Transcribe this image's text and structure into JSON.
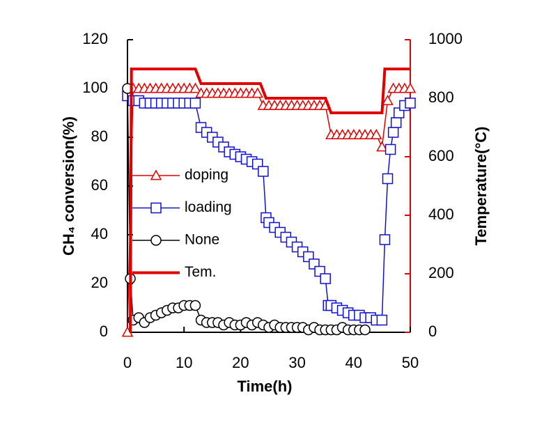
{
  "chart_data": {
    "type": "line",
    "x_label": "Time(h)",
    "y_label": "CH₄ conversion(%)",
    "y2_label": "Temperature(°C)",
    "xlim": [
      0,
      50
    ],
    "xticks": [
      0,
      10,
      20,
      30,
      40,
      50
    ],
    "ylim": [
      0,
      120
    ],
    "yticks": [
      0,
      20,
      40,
      60,
      80,
      100,
      120
    ],
    "y2lim": [
      0,
      1000
    ],
    "y2ticks": [
      0,
      200,
      400,
      600,
      800,
      1000
    ],
    "y2_color": "#e00000",
    "series": [
      {
        "name": "doping",
        "color": "#e00000",
        "marker": "triangle",
        "x": [
          0,
          1,
          2,
          3,
          4,
          5,
          6,
          7,
          8,
          9,
          10,
          11,
          12,
          13,
          14,
          15,
          16,
          17,
          18,
          19,
          20,
          21,
          22,
          23,
          24,
          25,
          26,
          27,
          28,
          29,
          30,
          31,
          32,
          33,
          34,
          35,
          36,
          37,
          38,
          39,
          40,
          41,
          42,
          43,
          44,
          45,
          46,
          47,
          48,
          49,
          50
        ],
        "values": [
          0,
          100,
          100,
          100,
          100,
          100,
          100,
          100,
          100,
          100,
          100,
          100,
          100,
          98,
          98,
          98,
          98,
          98,
          98,
          98,
          98,
          98,
          98,
          98,
          93,
          93,
          93,
          93,
          93,
          93,
          93,
          93,
          93,
          93,
          93,
          93,
          81,
          81,
          81,
          81,
          81,
          81,
          81,
          81,
          81,
          76,
          95,
          100,
          100,
          100,
          100
        ]
      },
      {
        "name": "loading",
        "color": "#1010d0",
        "marker": "square",
        "x": [
          0,
          1,
          2,
          3,
          4,
          5,
          6,
          7,
          8,
          9,
          10,
          11,
          12,
          13,
          14,
          15,
          16,
          17,
          18,
          19,
          20,
          21,
          22,
          23,
          24,
          24.5,
          25,
          26,
          27,
          28,
          29,
          30,
          31,
          32,
          33,
          34,
          35,
          35.5,
          36,
          37,
          38,
          39,
          40,
          41,
          42,
          43,
          44,
          45,
          45.5,
          46,
          46.5,
          47,
          47.5,
          48,
          49,
          50
        ],
        "values": [
          97,
          95,
          95,
          94,
          94,
          94,
          94,
          94,
          94,
          94,
          94,
          94,
          94,
          84,
          82,
          80,
          78,
          76,
          74,
          73,
          72,
          71,
          70,
          69,
          66,
          47,
          45,
          43,
          41,
          39,
          37,
          35,
          33,
          31,
          28,
          25,
          22,
          11,
          11,
          10,
          9,
          8,
          7,
          7,
          6,
          6,
          5,
          5,
          38,
          63,
          75,
          82,
          86,
          90,
          93,
          94
        ]
      },
      {
        "name": "None",
        "color": "#000000",
        "marker": "circle",
        "x": [
          0,
          0.5,
          1,
          2,
          3,
          4,
          5,
          6,
          7,
          8,
          9,
          10,
          11,
          12,
          13,
          14,
          15,
          16,
          17,
          18,
          19,
          20,
          21,
          22,
          23,
          24,
          25,
          26,
          27,
          28,
          29,
          30,
          31,
          32,
          33,
          34,
          35,
          36,
          37,
          38,
          39,
          40,
          41,
          42
        ],
        "values": [
          100,
          22,
          5,
          6,
          4,
          6,
          7,
          8,
          9,
          10,
          10,
          11,
          11,
          11,
          5,
          4,
          4,
          4,
          3,
          4,
          3,
          3,
          4,
          3,
          4,
          3,
          2,
          3,
          2,
          2,
          2,
          2,
          2,
          1,
          2,
          1,
          1,
          1,
          1,
          2,
          1,
          1,
          1,
          1
        ]
      },
      {
        "name": "Tem.",
        "color": "#e00000",
        "marker": "none",
        "axis": "y2",
        "x": [
          0.5,
          0.7,
          12,
          13,
          23.5,
          24.5,
          35,
          36,
          45,
          45.5,
          50
        ],
        "values": [
          0,
          900,
          900,
          850,
          850,
          800,
          800,
          750,
          750,
          900,
          900
        ]
      }
    ]
  }
}
